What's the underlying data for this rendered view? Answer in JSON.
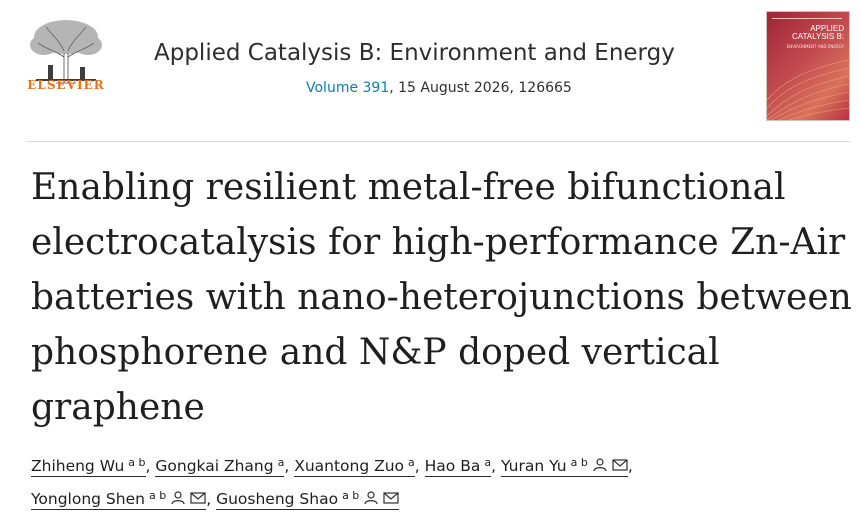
{
  "header": {
    "publisher": "ELSEVIER",
    "journal_title": "Applied Catalysis B: Environment and Energy",
    "volume_link": "Volume 391",
    "issue_info": ", 15 August 2026, 126665",
    "cover": {
      "title": "APPLIED CATALYSIS B:",
      "subtitle": "ENVIRONMENT AND ENERGY"
    }
  },
  "article": {
    "title": "Enabling resilient metal-free bifunctional electrocatalysis for high-performance Zn-Air batteries with nano-heterojunctions between phosphorene and N&P doped vertical graphene"
  },
  "authors": [
    {
      "name": "Zhiheng Wu",
      "aff": "a b",
      "sep": ", "
    },
    {
      "name": "Gongkai Zhang",
      "aff": "a",
      "sep": ", "
    },
    {
      "name": "Xuantong Zuo",
      "aff": "a",
      "sep": ", "
    },
    {
      "name": "Hao Ba",
      "aff": "a",
      "sep": ", "
    },
    {
      "name": "Yuran Yu",
      "aff": "a b",
      "sep": ","
    },
    {
      "name": "Yonglong Shen",
      "aff": "a b",
      "sep": ", "
    },
    {
      "name": "Guosheng Shao",
      "aff": "a b",
      "sep": ""
    }
  ],
  "icons": {
    "person": "person-icon",
    "email": "envelope-icon"
  },
  "colors": {
    "elsevier_orange": "#e9711c",
    "link_blue": "#0c7db1",
    "cover_red": "#b8303f"
  }
}
